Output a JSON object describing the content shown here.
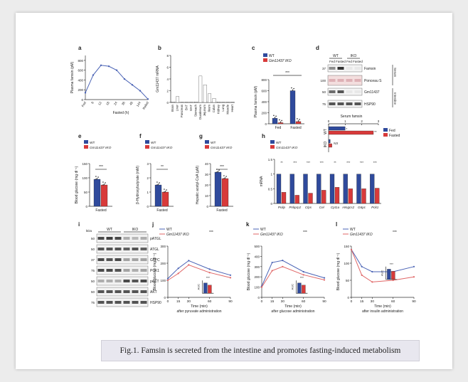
{
  "caption": "Fig.1. Famsin is secreted from the intestine and promotes fasting-induced metabolism",
  "legend": {
    "wt": "WT",
    "iko": "Gm11437 IKO",
    "fed": "Fed",
    "fasted": "Fasted"
  },
  "colors": {
    "wt": "#2f4a9c",
    "iko": "#d83a3a",
    "line_wt": "#4a63b5",
    "line_iko": "#e06666"
  },
  "blot_kda_unit": "kDa",
  "chart_data": [
    {
      "id": "a",
      "label": "a",
      "type": "line",
      "ylabel": "Plasma famsin (pM)",
      "xlabel": "Fasted (h)",
      "x": [
        "Fed",
        "6",
        "12",
        "18",
        "24",
        "36",
        "48",
        "144",
        "Refed"
      ],
      "values": [
        140,
        500,
        700,
        680,
        600,
        420,
        300,
        180,
        10
      ],
      "ylim": [
        0,
        900
      ],
      "yticks": [
        0,
        200,
        400,
        600,
        800
      ]
    },
    {
      "id": "b",
      "label": "b",
      "type": "bar",
      "ylabel": "Gm11437 mRNA",
      "categories": [
        "Brain",
        "Liver",
        "Pancreas",
        "BAT",
        "WAT",
        "Stomach",
        "Duodenum",
        "Jejunum",
        "Ileum",
        "Colon",
        "Kidney",
        "Lung",
        "Muscle",
        "Heart"
      ],
      "values": [
        0.1,
        1.0,
        0.05,
        0.05,
        0.05,
        0.1,
        4.5,
        3.0,
        1.5,
        0.7,
        0.1,
        0.05,
        0.05,
        0.05
      ],
      "ylim": [
        0,
        8
      ],
      "yticks": [
        0,
        2,
        4,
        6,
        8
      ]
    },
    {
      "id": "c",
      "label": "c",
      "type": "bar",
      "ylabel": "Plasma famsin (pM)",
      "categories": [
        "Fed",
        "Fasted"
      ],
      "series": [
        {
          "name": "WT",
          "values": [
            100,
            600
          ]
        },
        {
          "name": "Gm11437 IKO",
          "values": [
            20,
            40
          ]
        }
      ],
      "ylim": [
        0,
        800
      ],
      "yticks": [
        0,
        200,
        400,
        600,
        800
      ],
      "annotations": [
        "***",
        "***",
        "***"
      ]
    },
    {
      "id": "d_bar",
      "label": "",
      "type": "bar",
      "title": "Serum famsin",
      "orientation": "horizontal",
      "categories": [
        "WT",
        "IKO"
      ],
      "series": [
        {
          "name": "Fed",
          "values": [
            1.0,
            0.1
          ]
        },
        {
          "name": "Fasted",
          "values": [
            2.7,
            0.2
          ]
        }
      ],
      "xlim": [
        0,
        3
      ],
      "xticks": [
        0,
        1,
        2,
        3
      ],
      "annotations": [
        "*",
        "**",
        "NS"
      ]
    },
    {
      "id": "e",
      "label": "e",
      "type": "bar",
      "ylabel": "Blood glucose (mg dl⁻¹)",
      "xlabel": "Fasted",
      "series": [
        {
          "name": "WT",
          "values": [
            95
          ]
        },
        {
          "name": "Gm11437 IKO",
          "values": [
            75
          ]
        }
      ],
      "ylim": [
        0,
        150
      ],
      "yticks": [
        0,
        50,
        100,
        150
      ],
      "annotations": [
        "***"
      ]
    },
    {
      "id": "f",
      "label": "f",
      "type": "bar",
      "ylabel": "β-Hydroxybutyrate (mM)",
      "xlabel": "Fasted",
      "series": [
        {
          "name": "WT",
          "values": [
            1.5
          ]
        },
        {
          "name": "Gm11437 IKO",
          "values": [
            1.0
          ]
        }
      ],
      "ylim": [
        0,
        3
      ],
      "yticks": [
        0,
        1,
        2,
        3
      ],
      "annotations": [
        "**"
      ]
    },
    {
      "id": "g",
      "label": "g",
      "type": "bar",
      "ylabel": "Hepatic acetyl-CoA (μM)",
      "xlabel": "Fasted",
      "series": [
        {
          "name": "WT",
          "values": [
            32
          ]
        },
        {
          "name": "Gm11437 IKO",
          "values": [
            26
          ]
        }
      ],
      "ylim": [
        0,
        40
      ],
      "yticks": [
        0,
        10,
        20,
        30,
        40
      ],
      "annotations": [
        "***"
      ]
    },
    {
      "id": "h",
      "label": "h",
      "type": "bar",
      "ylabel": "mRNA",
      "categories": [
        "Pnlip",
        "Pnliprp2",
        "Clps",
        "Cel",
        "Cpt1a",
        "Hmgcs2",
        "G6pc",
        "Pck1"
      ],
      "series": [
        {
          "name": "WT",
          "values": [
            1.0,
            1.0,
            1.0,
            1.0,
            1.0,
            1.0,
            1.0,
            1.0
          ]
        },
        {
          "name": "Gm11437 IKO",
          "values": [
            0.38,
            0.28,
            0.35,
            0.45,
            0.55,
            0.5,
            0.5,
            0.52
          ]
        }
      ],
      "ylim": [
        0,
        1.5
      ],
      "yticks": [
        0,
        0.5,
        1.0,
        1.5
      ],
      "annotations": [
        "**",
        "***",
        "***",
        "***",
        "**",
        "***",
        "***",
        "***"
      ]
    },
    {
      "id": "j",
      "label": "j",
      "type": "line",
      "ylabel": "Blood glucose (mg dl⁻¹)",
      "xlabel": "Time (min)",
      "note": "after pyruvate administration",
      "x": [
        0,
        15,
        30,
        60,
        90
      ],
      "series": [
        {
          "name": "WT",
          "values": [
            110,
            170,
            215,
            165,
            130
          ]
        },
        {
          "name": "Gm11437 IKO",
          "values": [
            100,
            140,
            190,
            145,
            115
          ]
        }
      ],
      "ylim": [
        0,
        300
      ],
      "yticks": [
        0,
        100,
        200,
        300
      ],
      "sig": "***",
      "inset": {
        "ylabel": "AUC",
        "sig": "***",
        "values": [
          1.2,
          0.95
        ],
        "ylim": [
          0,
          1.5
        ]
      }
    },
    {
      "id": "k",
      "label": "k",
      "type": "line",
      "ylabel": "Blood glucose (mg dl⁻¹)",
      "xlabel": "Time (min)",
      "note": "after glucose administration",
      "x": [
        0,
        15,
        30,
        60,
        90
      ],
      "series": [
        {
          "name": "WT",
          "values": [
            110,
            340,
            360,
            250,
            190
          ]
        },
        {
          "name": "Gm11437 IKO",
          "values": [
            100,
            260,
            300,
            220,
            170
          ]
        }
      ],
      "ylim": [
        0,
        500
      ],
      "yticks": [
        0,
        100,
        200,
        300,
        400,
        500
      ],
      "sig": "***",
      "inset": {
        "ylabel": "AUC",
        "sig": "***",
        "values": [
          1.2,
          0.95
        ],
        "ylim": [
          0,
          1.5
        ]
      }
    },
    {
      "id": "l",
      "label": "l",
      "type": "line",
      "ylabel": "Blood glucose (mg dl⁻¹)",
      "xlabel": "Time (min)",
      "note": "after insulin administration",
      "x": [
        0,
        15,
        30,
        60,
        90
      ],
      "series": [
        {
          "name": "WT",
          "values": [
            140,
            90,
            75,
            75,
            90
          ]
        },
        {
          "name": "Gm11437 IKO",
          "values": [
            140,
            65,
            45,
            50,
            60
          ]
        }
      ],
      "ylim": [
        0,
        150
      ],
      "yticks": [
        0,
        50,
        100,
        150
      ],
      "sig": "***",
      "inset": {
        "ylabel": "AUC",
        "sig": "***",
        "values": [
          1.2,
          0.95
        ],
        "ylim": [
          0,
          1.5
        ]
      }
    }
  ],
  "blot_d": {
    "label": "d",
    "groups": [
      "WT",
      "IKO"
    ],
    "lanes": [
      "Fed",
      "Fasted",
      "Fed",
      "Fasted"
    ],
    "side": [
      "Serum",
      "Intestine"
    ],
    "rows": [
      {
        "name": "Famsin",
        "kda": "37",
        "band": [
          0.45,
          0.85,
          0.05,
          0.05
        ]
      },
      {
        "name": "Ponceau S",
        "kda": "100",
        "band": [
          0.35,
          0.35,
          0.35,
          0.35
        ]
      },
      {
        "name": "Gm11437",
        "kda": "50",
        "band": [
          0.6,
          0.7,
          0.05,
          0.05
        ]
      },
      {
        "name": "HSP90",
        "kda": "75",
        "band": [
          0.7,
          0.7,
          0.7,
          0.7
        ]
      }
    ]
  },
  "blot_i": {
    "label": "i",
    "groups": [
      "WT",
      "IKO"
    ],
    "rows": [
      {
        "name": "pATGL",
        "kda": "50",
        "band": [
          0.75,
          0.8,
          0.75,
          0.3,
          0.25,
          0.3
        ]
      },
      {
        "name": "ATGL",
        "kda": "50",
        "band": [
          0.7,
          0.7,
          0.7,
          0.65,
          0.7,
          0.65
        ]
      },
      {
        "name": "G6PC",
        "kda": "37",
        "band": [
          0.75,
          0.7,
          0.75,
          0.35,
          0.35,
          0.35
        ]
      },
      {
        "name": "PCK1",
        "kda": "75",
        "band": [
          0.75,
          0.75,
          0.7,
          0.35,
          0.3,
          0.35
        ]
      },
      {
        "name": "pAKT",
        "kda": "50",
        "band": [
          0.3,
          0.3,
          0.3,
          0.75,
          0.7,
          0.75
        ]
      },
      {
        "name": "AKT",
        "kda": "50",
        "band": [
          0.7,
          0.7,
          0.7,
          0.7,
          0.7,
          0.7
        ]
      },
      {
        "name": "HSP90",
        "kda": "75",
        "band": [
          0.7,
          0.7,
          0.7,
          0.7,
          0.7,
          0.7
        ]
      }
    ]
  }
}
